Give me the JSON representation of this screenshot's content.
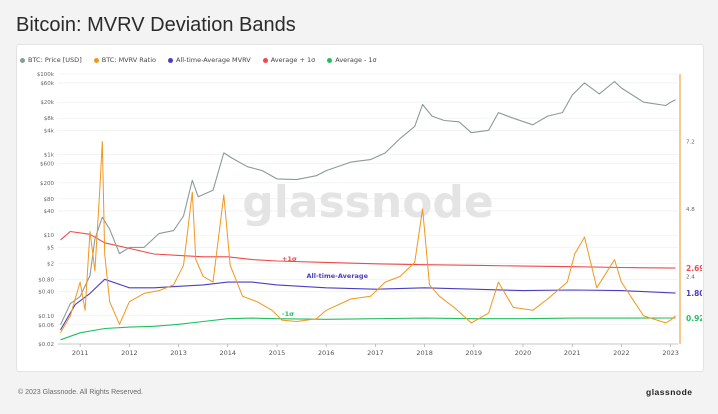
{
  "title": "Bitcoin: MVRV Deviation Bands",
  "footer": "© 2023 Glassnode. All Rights Reserved.",
  "logo": "glassnode",
  "watermark": "glassnode",
  "colors": {
    "price": "#8c9a9a",
    "mvrv": "#f2961e",
    "ath_avg": "#4a3fc2",
    "plus1": "#ef4a4a",
    "minus1": "#20c060"
  },
  "chart_data": {
    "type": "line",
    "legend_position": "top-left",
    "grid": true,
    "x_ticks": [
      "2011",
      "2012",
      "2013",
      "2014",
      "2015",
      "2016",
      "2017",
      "2018",
      "2019",
      "2020",
      "2021",
      "2022",
      "2023"
    ],
    "y_left_ticks": [
      "$100k",
      "$60k",
      "$20k",
      "$8k",
      "$4k",
      "$1k",
      "$600",
      "$200",
      "$80",
      "$40",
      "$10",
      "$5",
      "$2",
      "$0.80",
      "$0.40",
      "$0.10",
      "$0.06",
      "$0.02"
    ],
    "y_left_log_values": [
      100000,
      60000,
      20000,
      8000,
      4000,
      1000,
      600,
      200,
      80,
      40,
      10,
      5,
      2,
      0.8,
      0.4,
      0.1,
      0.06,
      0.02
    ],
    "y_right_ticks": [
      "7.2",
      "4.8",
      "2.4"
    ],
    "y_right_range": [
      0,
      9.6
    ],
    "end_labels": [
      "2.699",
      "1.808",
      "0.925"
    ],
    "annotations": [
      "+1σ",
      "All-time-Average",
      "-1σ"
    ],
    "series": [
      {
        "name": "BTC: Price [USD]",
        "axis": "left",
        "x": [
          2010.6,
          2010.8,
          2011.0,
          2011.2,
          2011.3,
          2011.45,
          2011.6,
          2011.8,
          2012.0,
          2012.3,
          2012.6,
          2012.9,
          2013.1,
          2013.28,
          2013.4,
          2013.7,
          2013.92,
          2014.1,
          2014.4,
          2014.7,
          2015.0,
          2015.4,
          2015.8,
          2016.0,
          2016.5,
          2016.9,
          2017.2,
          2017.5,
          2017.8,
          2017.96,
          2018.15,
          2018.4,
          2018.7,
          2018.95,
          2019.3,
          2019.5,
          2019.8,
          2020.2,
          2020.5,
          2020.8,
          2021.0,
          2021.25,
          2021.55,
          2021.86,
          2022.0,
          2022.45,
          2022.9,
          2023.0,
          2023.1
        ],
        "values": [
          0.06,
          0.2,
          0.3,
          1.0,
          8,
          28,
          14,
          3.5,
          5,
          5,
          11,
          13,
          30,
          230,
          90,
          130,
          1100,
          800,
          500,
          400,
          250,
          240,
          300,
          400,
          650,
          750,
          1100,
          2500,
          5000,
          17500,
          9000,
          7000,
          6500,
          3500,
          4000,
          11000,
          8000,
          5500,
          9000,
          11000,
          30000,
          60000,
          32000,
          65000,
          45000,
          20000,
          16500,
          20000,
          23000
        ]
      },
      {
        "name": "BTC: MVRV Ratio",
        "axis": "right",
        "x": [
          2010.6,
          2010.8,
          2011.0,
          2011.1,
          2011.2,
          2011.3,
          2011.4,
          2011.45,
          2011.5,
          2011.6,
          2011.8,
          2012.0,
          2012.3,
          2012.6,
          2012.9,
          2013.1,
          2013.28,
          2013.35,
          2013.5,
          2013.7,
          2013.92,
          2014.05,
          2014.3,
          2014.6,
          2014.9,
          2015.1,
          2015.4,
          2015.8,
          2016.0,
          2016.5,
          2016.9,
          2017.2,
          2017.5,
          2017.8,
          2017.96,
          2018.1,
          2018.3,
          2018.6,
          2018.95,
          2019.3,
          2019.5,
          2019.8,
          2020.2,
          2020.5,
          2020.9,
          2021.05,
          2021.25,
          2021.5,
          2021.86,
          2022.0,
          2022.45,
          2022.9,
          2023.0,
          2023.1
        ],
        "values": [
          0.4,
          1.0,
          2.2,
          1.2,
          4.0,
          2.6,
          5.5,
          7.2,
          3.2,
          1.5,
          0.7,
          1.5,
          1.8,
          1.9,
          2.1,
          2.8,
          5.4,
          3.0,
          2.4,
          2.2,
          5.3,
          2.8,
          1.7,
          1.5,
          1.2,
          0.85,
          0.8,
          0.9,
          1.2,
          1.6,
          1.7,
          2.2,
          2.4,
          2.9,
          4.8,
          2.1,
          1.7,
          1.3,
          0.75,
          1.1,
          2.2,
          1.3,
          1.2,
          1.6,
          2.2,
          3.2,
          3.8,
          2.0,
          3.0,
          2.2,
          1.0,
          0.75,
          0.85,
          1.0
        ]
      },
      {
        "name": "All-time-Average MVRV",
        "axis": "right",
        "x": [
          2010.6,
          2010.9,
          2011.2,
          2011.5,
          2012.0,
          2012.5,
          2013.0,
          2013.5,
          2014.0,
          2014.5,
          2015.0,
          2016.0,
          2017.0,
          2018.0,
          2019.0,
          2020.0,
          2021.0,
          2022.0,
          2023.1
        ],
        "values": [
          0.5,
          1.4,
          1.8,
          2.3,
          2.0,
          2.0,
          2.05,
          2.1,
          2.2,
          2.2,
          2.1,
          2.0,
          1.95,
          2.0,
          1.95,
          1.9,
          1.92,
          1.9,
          1.808
        ]
      },
      {
        "name": "Average + 1σ",
        "axis": "right",
        "x": [
          2010.6,
          2010.8,
          2011.2,
          2011.5,
          2012.0,
          2012.5,
          2013.0,
          2013.5,
          2014.0,
          2014.5,
          2015.0,
          2016.0,
          2017.0,
          2018.0,
          2019.0,
          2020.0,
          2021.0,
          2022.0,
          2023.1
        ],
        "values": [
          3.7,
          4.0,
          3.9,
          3.6,
          3.4,
          3.2,
          3.15,
          3.1,
          3.1,
          3.0,
          2.95,
          2.9,
          2.85,
          2.82,
          2.8,
          2.77,
          2.75,
          2.72,
          2.699
        ]
      },
      {
        "name": "Average - 1σ",
        "axis": "right",
        "x": [
          2010.6,
          2011.0,
          2011.5,
          2012.0,
          2012.5,
          2013.0,
          2013.5,
          2014.0,
          2014.5,
          2015.0,
          2016.0,
          2017.0,
          2018.0,
          2019.0,
          2020.0,
          2021.0,
          2022.0,
          2023.1
        ],
        "values": [
          0.15,
          0.4,
          0.55,
          0.6,
          0.63,
          0.7,
          0.8,
          0.9,
          0.92,
          0.9,
          0.88,
          0.9,
          0.92,
          0.9,
          0.9,
          0.92,
          0.92,
          0.925
        ]
      }
    ]
  }
}
